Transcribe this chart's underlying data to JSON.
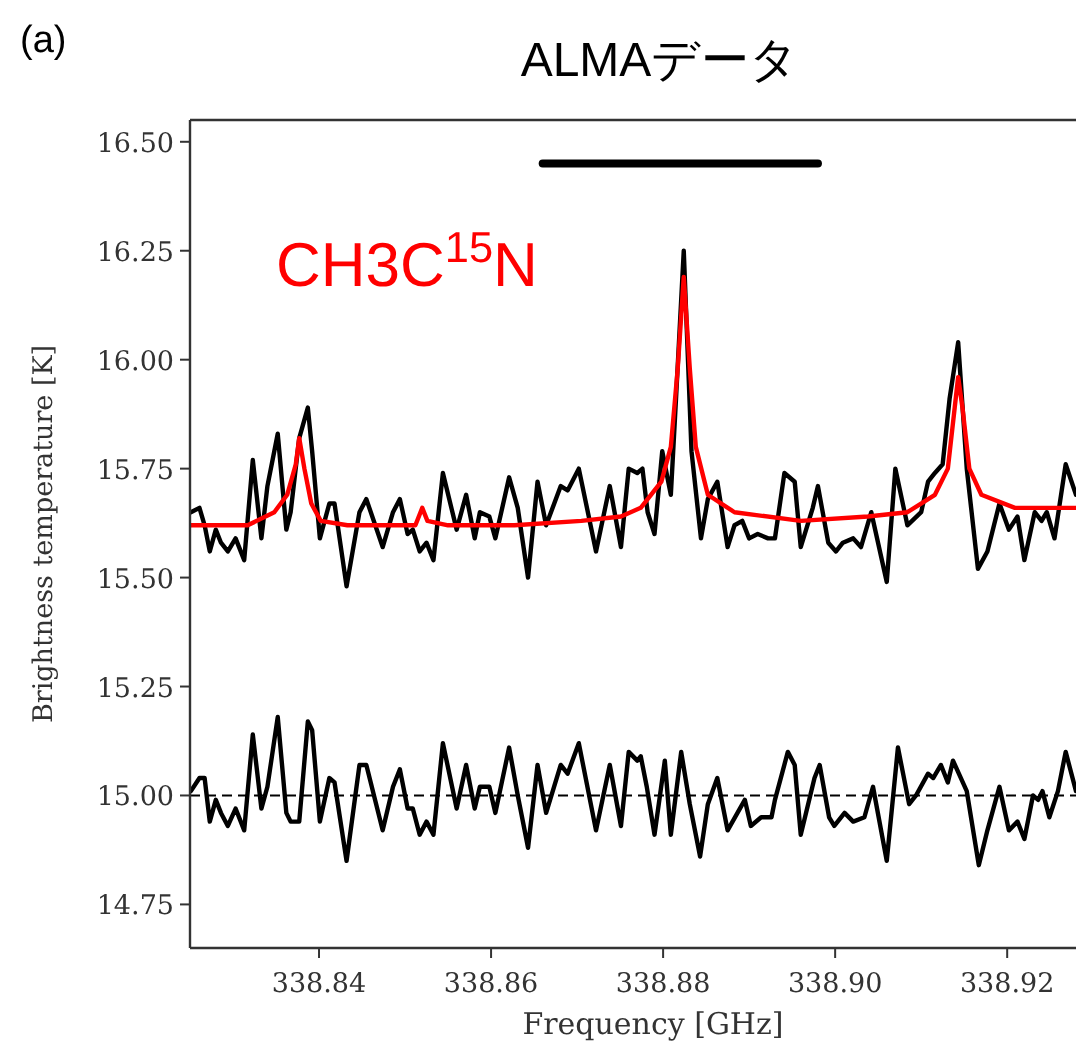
{
  "chart_data": {
    "type": "line",
    "title": "ALMAデータ",
    "xlabel": "Frequency [GHz]",
    "ylabel": "Brightness temperature [K]",
    "annotations": [
      "(a)"
    ],
    "xlim": [
      338.825,
      338.928
    ],
    "ylim": [
      14.65,
      16.55
    ],
    "xticks": [
      {
        "value": 338.84,
        "label": "338.84"
      },
      {
        "value": 338.86,
        "label": "338.86"
      },
      {
        "value": 338.88,
        "label": "338.88"
      },
      {
        "value": 338.9,
        "label": "338.90"
      },
      {
        "value": 338.92,
        "label": "338.92"
      }
    ],
    "yticks": [
      {
        "value": 14.75,
        "label": "14.75"
      },
      {
        "value": 15,
        "label": "15.00"
      },
      {
        "value": 15.25,
        "label": "15.25"
      },
      {
        "value": 15.5,
        "label": "15.50"
      },
      {
        "value": 15.75,
        "label": "15.75"
      },
      {
        "value": 16,
        "label": "16.00"
      },
      {
        "value": 16.25,
        "label": "16.25"
      },
      {
        "value": 16.5,
        "label": "16.50"
      }
    ],
    "ref_lines": [
      {
        "axis": "y",
        "value": 15.0,
        "color": "#000000",
        "line_style": "dashed"
      }
    ],
    "series": [
      {
        "color": "#000000",
        "x": [
          338.8251,
          338.8261,
          338.8267,
          338.8273,
          338.828,
          338.8286,
          338.8294,
          338.8303,
          338.8313,
          338.8323,
          338.8333,
          338.834,
          338.8352,
          338.8362,
          338.8367,
          338.8377,
          338.8387,
          338.8392,
          338.8401,
          338.8412,
          338.8418,
          338.8432,
          338.8447,
          338.8455,
          338.8474,
          338.8486,
          338.8494,
          338.8503,
          338.8509,
          338.8517,
          338.8525,
          338.8533,
          338.8544,
          338.856,
          338.8571,
          338.8581,
          338.8587,
          338.8598,
          338.8605,
          338.8621,
          338.8631,
          338.8643,
          338.8654,
          338.8664,
          338.8681,
          338.8689,
          338.8702,
          338.8722,
          338.8738,
          338.8751,
          338.876,
          338.877,
          338.8776,
          338.8782,
          338.879,
          338.8799,
          338.8809,
          338.8815,
          338.8824,
          338.8833,
          338.8844,
          338.8852,
          338.8863,
          338.8875,
          338.8883,
          338.8892,
          338.89,
          338.891,
          338.8922,
          338.893,
          338.8941,
          338.8953,
          338.896,
          338.8974,
          338.898,
          338.8992,
          338.9001,
          338.9009,
          338.9021,
          338.903,
          338.9042,
          338.906,
          338.907,
          338.9084,
          338.91,
          338.9108,
          338.9116,
          338.9125,
          338.9133,
          338.9143,
          338.9153,
          338.9166,
          338.9177,
          338.9191,
          338.9202,
          338.9212,
          338.922,
          338.9232,
          338.924,
          338.9246,
          338.9255,
          338.9268,
          338.928
        ],
        "values": [
          15.65,
          15.66,
          15.62,
          15.56,
          15.61,
          15.58,
          15.56,
          15.59,
          15.54,
          15.77,
          15.59,
          15.71,
          15.83,
          15.61,
          15.65,
          15.82,
          15.89,
          15.79,
          15.59,
          15.67,
          15.67,
          15.48,
          15.65,
          15.68,
          15.57,
          15.65,
          15.68,
          15.6,
          15.61,
          15.56,
          15.58,
          15.54,
          15.74,
          15.61,
          15.69,
          15.59,
          15.65,
          15.64,
          15.59,
          15.73,
          15.66,
          15.5,
          15.72,
          15.62,
          15.71,
          15.7,
          15.75,
          15.56,
          15.71,
          15.57,
          15.75,
          15.74,
          15.75,
          15.65,
          15.6,
          15.79,
          15.69,
          15.91,
          16.25,
          15.79,
          15.59,
          15.68,
          15.72,
          15.57,
          15.62,
          15.63,
          15.59,
          15.6,
          15.59,
          15.59,
          15.74,
          15.72,
          15.57,
          15.66,
          15.71,
          15.58,
          15.56,
          15.58,
          15.59,
          15.57,
          15.65,
          15.49,
          15.75,
          15.62,
          15.65,
          15.72,
          15.74,
          15.76,
          15.91,
          16.04,
          15.75,
          15.52,
          15.56,
          15.67,
          15.61,
          15.64,
          15.54,
          15.65,
          15.63,
          15.65,
          15.59,
          15.76,
          15.69
        ]
      },
      {
        "name": "CH3C$^{15}$N",
        "color": "#ff0000",
        "x": [
          338.8251,
          338.8317,
          338.8348,
          338.8363,
          338.8373,
          338.8377,
          338.8383,
          338.8391,
          338.8402,
          338.8433,
          338.8495,
          338.8512,
          338.852,
          338.8526,
          338.855,
          338.8627,
          338.8705,
          338.8751,
          338.8774,
          338.8798,
          338.8809,
          338.8817,
          338.8824,
          338.8831,
          338.8838,
          338.8852,
          338.8883,
          338.896,
          338.9038,
          338.9084,
          338.9116,
          338.9131,
          338.9139,
          338.9143,
          338.9148,
          338.9156,
          338.917,
          338.9209,
          338.928
        ],
        "values": [
          15.62,
          15.62,
          15.65,
          15.69,
          15.76,
          15.82,
          15.75,
          15.67,
          15.63,
          15.62,
          15.62,
          15.62,
          15.66,
          15.63,
          15.62,
          15.62,
          15.63,
          15.64,
          15.66,
          15.72,
          15.8,
          15.98,
          16.19,
          15.98,
          15.8,
          15.69,
          15.65,
          15.63,
          15.64,
          15.65,
          15.69,
          15.75,
          15.89,
          15.96,
          15.89,
          15.75,
          15.69,
          15.66,
          15.66
        ]
      },
      {
        "color": "#000000",
        "x": [
          338.8251,
          338.8261,
          338.8267,
          338.8273,
          338.828,
          338.8286,
          338.8294,
          338.8303,
          338.8313,
          338.8323,
          338.8333,
          338.834,
          338.8352,
          338.8362,
          338.8367,
          338.8377,
          338.8387,
          338.8392,
          338.8401,
          338.8412,
          338.8418,
          338.8432,
          338.8447,
          338.8455,
          338.8474,
          338.8486,
          338.8494,
          338.8503,
          338.8509,
          338.8517,
          338.8525,
          338.8533,
          338.8544,
          338.856,
          338.8571,
          338.8581,
          338.8587,
          338.8598,
          338.8605,
          338.8621,
          338.8631,
          338.8643,
          338.8654,
          338.8664,
          338.8681,
          338.8689,
          338.8702,
          338.8722,
          338.8738,
          338.8751,
          338.876,
          338.877,
          338.8774,
          338.8781,
          338.879,
          338.8802,
          338.8809,
          338.8821,
          338.8831,
          338.8843,
          338.8852,
          338.8863,
          338.8875,
          338.8895,
          338.8902,
          338.8914,
          338.8926,
          338.893,
          338.8945,
          338.8953,
          338.896,
          338.8976,
          338.8982,
          338.8993,
          338.8999,
          338.9011,
          338.9021,
          338.9034,
          338.9044,
          338.906,
          338.9073,
          338.9086,
          338.9094,
          338.9108,
          338.9114,
          338.9123,
          338.9131,
          338.9137,
          338.9153,
          338.9167,
          338.9177,
          338.9191,
          338.9202,
          338.9212,
          338.922,
          338.923,
          338.9236,
          338.9241,
          338.9249,
          338.9259,
          338.9268,
          338.928
        ],
        "values": [
          15.01,
          15.04,
          15.04,
          14.94,
          14.99,
          14.96,
          14.93,
          14.97,
          14.92,
          15.14,
          14.97,
          15.02,
          15.18,
          14.96,
          14.94,
          14.94,
          15.17,
          15.15,
          14.94,
          15.04,
          15.03,
          14.85,
          15.07,
          15.07,
          14.92,
          15.02,
          15.06,
          14.97,
          14.97,
          14.91,
          14.94,
          14.91,
          15.12,
          14.97,
          15.07,
          14.97,
          15.02,
          15.02,
          14.96,
          15.11,
          15.0,
          14.88,
          15.07,
          14.96,
          15.07,
          15.05,
          15.12,
          14.92,
          15.07,
          14.93,
          15.1,
          15.08,
          15.09,
          15.02,
          14.91,
          15.08,
          14.91,
          15.1,
          14.98,
          14.86,
          14.98,
          15.04,
          14.92,
          14.99,
          14.93,
          14.95,
          14.95,
          14.99,
          15.1,
          15.07,
          14.91,
          15.04,
          15.07,
          14.95,
          14.93,
          14.96,
          14.94,
          14.95,
          15.02,
          14.85,
          15.11,
          14.98,
          15.0,
          15.05,
          15.04,
          15.07,
          15.03,
          15.08,
          15.01,
          14.84,
          14.92,
          15.02,
          14.92,
          14.94,
          14.9,
          15.0,
          14.99,
          15.01,
          14.95,
          15.01,
          15.1,
          15.01
        ]
      },
      {
        "color": "#000000",
        "x": [
          338.866,
          338.898
        ],
        "values": [
          16.45,
          16.45
        ]
      }
    ]
  }
}
